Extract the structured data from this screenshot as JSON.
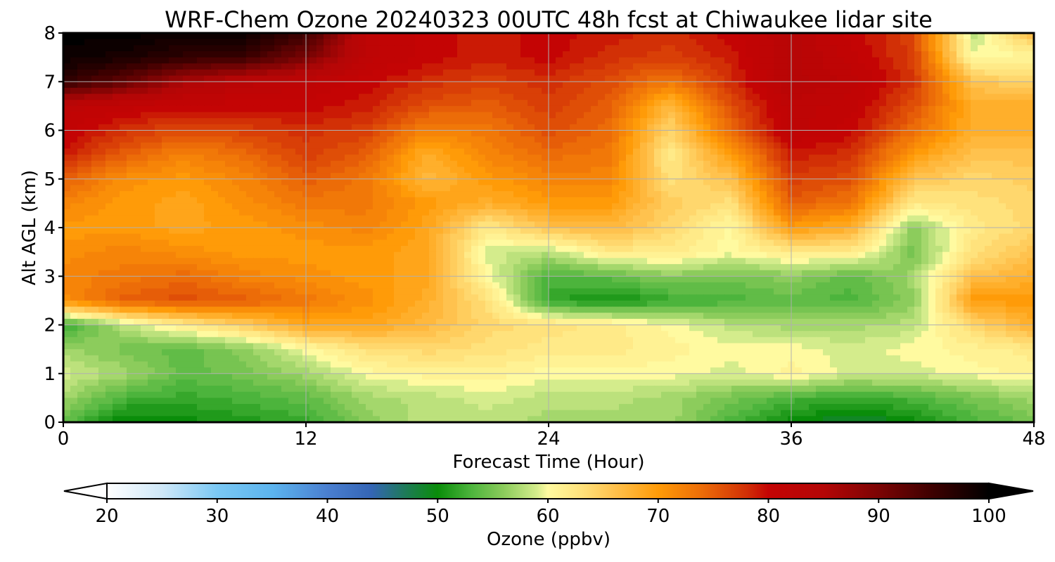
{
  "chart_data": {
    "type": "heatmap",
    "title": "WRF-Chem Ozone  20240323 00UTC 48h fcst at Chiwaukee lidar site",
    "xlabel": "Forecast Time (Hour)",
    "ylabel": "Alt AGL (km)",
    "xlim": [
      0,
      48
    ],
    "ylim": [
      0,
      8
    ],
    "xticks": [
      "0",
      "12",
      "24",
      "36",
      "48"
    ],
    "yticks": [
      "0",
      "1",
      "2",
      "3",
      "4",
      "5",
      "6",
      "7",
      "8"
    ],
    "grid": true,
    "x": [
      0,
      3,
      6,
      9,
      12,
      15,
      18,
      21,
      24,
      27,
      30,
      33,
      36,
      39,
      42,
      45,
      48
    ],
    "y": [
      0,
      0.5,
      1,
      1.5,
      2,
      2.5,
      3,
      3.5,
      4,
      4.5,
      5,
      5.5,
      6,
      6.5,
      7,
      7.5,
      8
    ],
    "z": [
      [
        54,
        49,
        50,
        51,
        52,
        56,
        58,
        58,
        57,
        57,
        57,
        53,
        50,
        48,
        50,
        53,
        55
      ],
      [
        57,
        53,
        52,
        53,
        54,
        57,
        58,
        59,
        58,
        58,
        57,
        55,
        53,
        52,
        53,
        55,
        57
      ],
      [
        59,
        57,
        54,
        55,
        57,
        60,
        61,
        61,
        60,
        60,
        60,
        59,
        61,
        59,
        59,
        60,
        61
      ],
      [
        57,
        55,
        54,
        56,
        60,
        63,
        64,
        63,
        62,
        62,
        61,
        60,
        60,
        59,
        60,
        61,
        62
      ],
      [
        52,
        58,
        62,
        65,
        69,
        69,
        67,
        64,
        63,
        62,
        60,
        58,
        57,
        57,
        58,
        64,
        68
      ],
      [
        71,
        75,
        76,
        75,
        73,
        71,
        68,
        63,
        52,
        50,
        52,
        53,
        54,
        53,
        56,
        70,
        70
      ],
      [
        72,
        73,
        74,
        72,
        71,
        70,
        69,
        60,
        53,
        54,
        56,
        55,
        56,
        54,
        57,
        66,
        68
      ],
      [
        71,
        72,
        71,
        70,
        70,
        70,
        69,
        59,
        58,
        62,
        62,
        60,
        62,
        62,
        55,
        63,
        66
      ],
      [
        70,
        70,
        69,
        70,
        71,
        72,
        69,
        62,
        66,
        67,
        64,
        60,
        70,
        68,
        56,
        62,
        64
      ],
      [
        72,
        70,
        69,
        71,
        73,
        73,
        70,
        68,
        70,
        70,
        65,
        63,
        75,
        73,
        62,
        63,
        64
      ],
      [
        75,
        71,
        70,
        72,
        75,
        73,
        67,
        70,
        72,
        72,
        63,
        66,
        77,
        76,
        66,
        64,
        65
      ],
      [
        79,
        75,
        72,
        74,
        77,
        75,
        68,
        72,
        74,
        73,
        62,
        70,
        79,
        78,
        70,
        66,
        66
      ],
      [
        81,
        78,
        76,
        77,
        78,
        77,
        72,
        73,
        76,
        74,
        64,
        74,
        82,
        80,
        74,
        68,
        68
      ],
      [
        82,
        81,
        80,
        80,
        80,
        79,
        76,
        75,
        77,
        75,
        67,
        76,
        82,
        81,
        76,
        68,
        68
      ],
      [
        96,
        92,
        86,
        83,
        82,
        80,
        78,
        77,
        78,
        76,
        73,
        78,
        84,
        82,
        78,
        66,
        64
      ],
      [
        99,
        98,
        96,
        95,
        90,
        82,
        80,
        79,
        80,
        78,
        77,
        79,
        84,
        81,
        77,
        60,
        60
      ],
      [
        100,
        100,
        99,
        99,
        95,
        82,
        80,
        79,
        80,
        79,
        78,
        80,
        84,
        80,
        77,
        58,
        67
      ]
    ],
    "colorbar": {
      "label": "Ozone  (ppbv)",
      "min": 20,
      "max": 100,
      "ticks": [
        "20",
        "30",
        "40",
        "50",
        "60",
        "70",
        "80",
        "90",
        "100"
      ],
      "extend": "both",
      "stops": [
        {
          "v": 20,
          "c": "#ffffff"
        },
        {
          "v": 25,
          "c": "#cfe8f8"
        },
        {
          "v": 30,
          "c": "#7ac8f4"
        },
        {
          "v": 35,
          "c": "#5cb4ee"
        },
        {
          "v": 40,
          "c": "#4a7fd0"
        },
        {
          "v": 44,
          "c": "#3465b5"
        },
        {
          "v": 47,
          "c": "#1e7a5a"
        },
        {
          "v": 50,
          "c": "#0a8d0a"
        },
        {
          "v": 53,
          "c": "#4cb43c"
        },
        {
          "v": 56,
          "c": "#8ccc5c"
        },
        {
          "v": 59,
          "c": "#d4ec8c"
        },
        {
          "v": 60,
          "c": "#fffaa0"
        },
        {
          "v": 63,
          "c": "#ffe27c"
        },
        {
          "v": 66,
          "c": "#ffc24e"
        },
        {
          "v": 70,
          "c": "#ff9b08"
        },
        {
          "v": 74,
          "c": "#ec6c08"
        },
        {
          "v": 78,
          "c": "#d23006"
        },
        {
          "v": 80,
          "c": "#c40404"
        },
        {
          "v": 85,
          "c": "#b40606"
        },
        {
          "v": 90,
          "c": "#7c0404"
        },
        {
          "v": 95,
          "c": "#3c0000"
        },
        {
          "v": 100,
          "c": "#000000"
        }
      ]
    }
  }
}
